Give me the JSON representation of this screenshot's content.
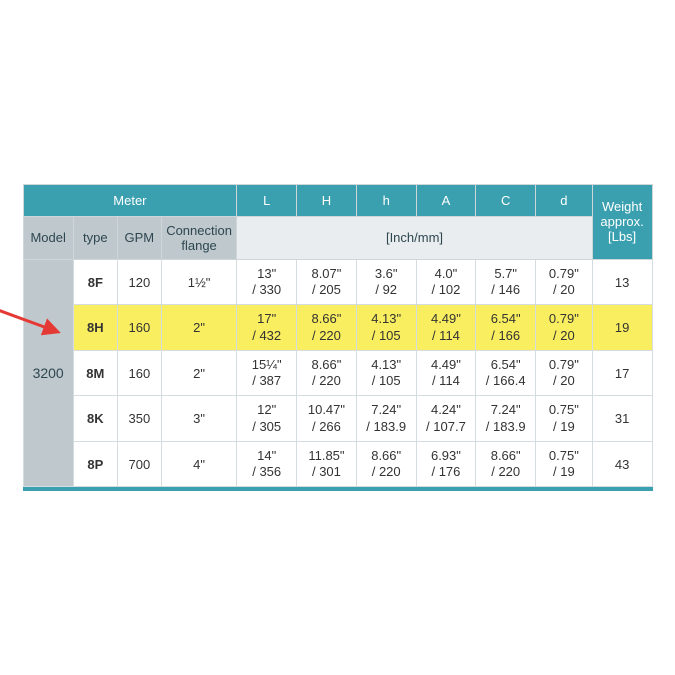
{
  "colors": {
    "header_bg": "#3aa0b0",
    "subheader_bg": "#bfc8cd",
    "unit_bg": "#e9edef",
    "highlight_bg": "#f9ee5f",
    "border": "#d5dcdf",
    "text_dark": "#2e4650",
    "text_body": "#333333",
    "arrow": "#e53935"
  },
  "header": {
    "meter": "Meter",
    "L": "L",
    "H": "H",
    "h": "h",
    "A": "A",
    "C": "C",
    "d": "d",
    "weight": "Weight approx.",
    "weight_unit": "[Lbs]",
    "model": "Model",
    "type": "type",
    "gpm": "GPM",
    "conn": "Connection flange",
    "unit_group": "[Inch/mm]"
  },
  "model": "3200",
  "rows": [
    {
      "type": "8F",
      "gpm": "120",
      "conn": "1½\"",
      "L": "13\" / 330",
      "H": "8.07\" / 205",
      "h": "3.6\" / 92",
      "A": "4.0\" /102",
      "C": "5.7\" /146",
      "d": "0.79\" /20",
      "w": "13",
      "highlight": false
    },
    {
      "type": "8H",
      "gpm": "160",
      "conn": "2\"",
      "L": "17\" / 432",
      "H": "8.66\" / 220",
      "h": "4.13\" / 105",
      "A": "4.49\" / 114",
      "C": "6.54\" / 166",
      "d": "0.79\" / 20",
      "w": "19",
      "highlight": true
    },
    {
      "type": "8M",
      "gpm": "160",
      "conn": "2\"",
      "L": "15¼\"/ 387",
      "H": "8.66\" / 220",
      "h": "4.13\" /105",
      "A": "4.49\" /114",
      "C": "6.54\" / 166.4",
      "d": "0.79\" /20",
      "w": "17",
      "highlight": false
    },
    {
      "type": "8K",
      "gpm": "350",
      "conn": "3\"",
      "L": "12\"/ 305",
      "H": "10.47\"/ 266",
      "h": "7.24\"/ 183.9",
      "A": "4.24\"/ 107.7",
      "C": "7.24\"/ 183.9",
      "d": "0.75\" / 19",
      "w": "31",
      "highlight": false
    },
    {
      "type": "8P",
      "gpm": "700",
      "conn": "4\"",
      "L": "14\"/ 356",
      "H": "11.85\"/ 301",
      "h": "8.66\"/ 220",
      "A": "6.93\"/ 176",
      "C": "8.66\"/ 220",
      "d": "0.75\" / 19",
      "w": "43",
      "highlight": false
    }
  ],
  "highlight_index": 1,
  "column_widths_pct": [
    8,
    7,
    7,
    12,
    9.5,
    9.5,
    9.5,
    9.5,
    9.5,
    9,
    9.5
  ]
}
